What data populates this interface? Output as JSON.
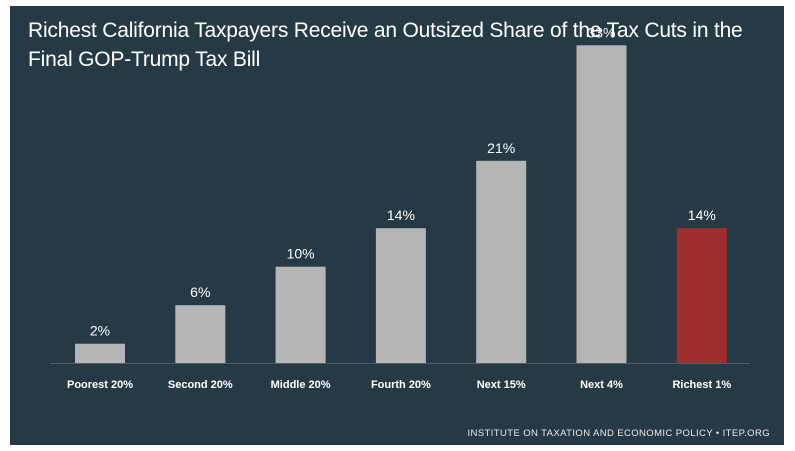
{
  "chart_data": {
    "type": "bar",
    "title": "Richest California Taxpayers Receive an Outsized Share of the Tax Cuts in the Final GOP-Trump Tax Bill",
    "categories": [
      "Poorest 20%",
      "Second 20%",
      "Middle 20%",
      "Fourth 20%",
      "Next 15%",
      "Next 4%",
      "Richest 1%"
    ],
    "values": [
      2,
      6,
      10,
      14,
      21,
      33,
      14
    ],
    "value_labels": [
      "2%",
      "6%",
      "10%",
      "14%",
      "21%",
      "33%",
      "14%"
    ],
    "unit": "%",
    "xlabel": "",
    "ylabel": "",
    "ylim": [
      0,
      35
    ],
    "grid": false,
    "colors": {
      "default": "#b5b5b5",
      "highlight": "#9e2f2c",
      "background": "#263a45",
      "text": "#ffffff"
    },
    "highlight_index": 6,
    "source": "INSTITUTE ON TAXATION AND ECONOMIC POLICY • ITEP.ORG"
  }
}
